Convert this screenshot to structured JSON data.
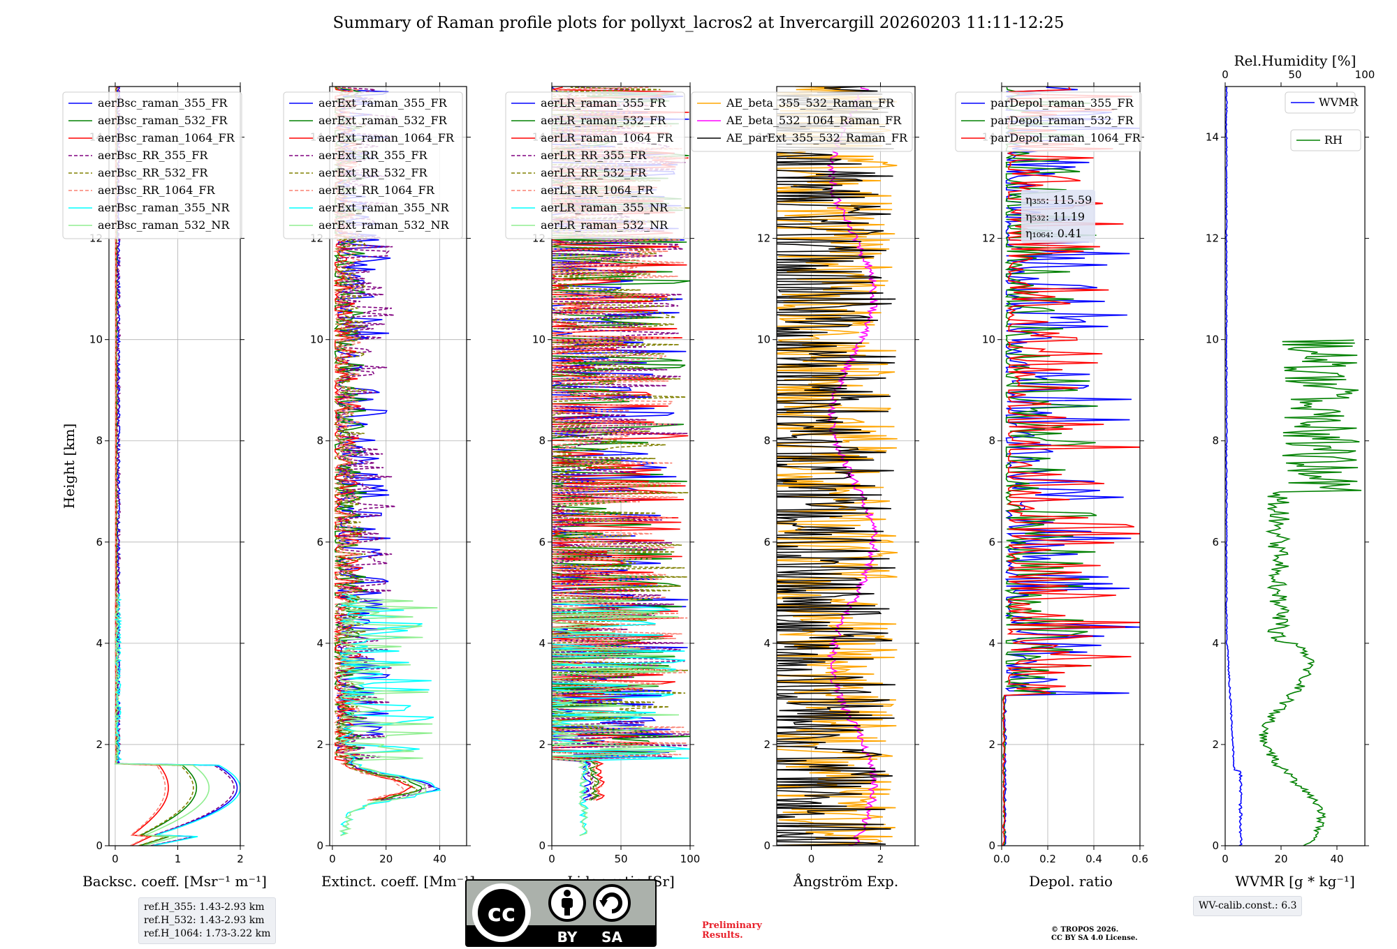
{
  "title": "Summary of Raman profile plots for pollyxt_lacros2 at Invercargill 20260203 11:11-12:25",
  "colors": {
    "blue": "#0000ff",
    "green": "#008000",
    "red": "#ff0000",
    "purple": "#800080",
    "olive": "#808000",
    "salmon": "#fa8072",
    "cyan": "#00ffff",
    "lightgreen": "#90ee90",
    "orange": "#ffa500",
    "magenta": "#ff00ff",
    "black": "#000000"
  },
  "chart_data": [
    {
      "type": "line",
      "id": "bsc",
      "xlabel": "Backsc. coeff. [Msr⁻¹ m⁻¹]",
      "ylabel": "Height [km]",
      "xlim": [
        -0.1,
        2.0
      ],
      "ylim": [
        0,
        15
      ],
      "xticks": [
        0,
        1,
        2
      ],
      "xtick_labels": [
        "0",
        "1",
        "2"
      ],
      "yticks": [
        0,
        2,
        4,
        6,
        8,
        10,
        12,
        14
      ],
      "ytick_labels": [
        "0",
        "2",
        "4",
        "6",
        "8",
        "10",
        "12",
        "14"
      ],
      "grid": true,
      "legend_position": "upper-left",
      "series": [
        {
          "name": "aerBsc_raman_355_FR",
          "color": "blue",
          "dash": "",
          "pattern": "pbl",
          "peak": 1.95,
          "free": 0.05,
          "noise": 0.05,
          "top": 15,
          "bottom": 0
        },
        {
          "name": "aerBsc_raman_532_FR",
          "color": "green",
          "dash": "",
          "pattern": "pbl",
          "peak": 1.3,
          "free": 0.02,
          "noise": 0.02,
          "top": 15,
          "bottom": 0
        },
        {
          "name": "aerBsc_raman_1064_FR",
          "color": "red",
          "dash": "",
          "pattern": "pbl",
          "peak": 0.85,
          "free": 0.01,
          "noise": 0.01,
          "top": 15,
          "bottom": 0
        },
        {
          "name": "aerBsc_RR_355_FR",
          "color": "purple",
          "dash": "5,3",
          "pattern": "pbl",
          "peak": 1.9,
          "free": 0.05,
          "noise": 0.06,
          "top": 15,
          "bottom": 0
        },
        {
          "name": "aerBsc_RR_532_FR",
          "color": "olive",
          "dash": "5,3",
          "pattern": "pbl",
          "peak": 1.25,
          "free": 0.02,
          "noise": 0.02,
          "top": 15,
          "bottom": 0
        },
        {
          "name": "aerBsc_RR_1064_FR",
          "color": "salmon",
          "dash": "5,3",
          "pattern": "pbl",
          "peak": 0.8,
          "free": 0.01,
          "noise": 0.01,
          "top": 15,
          "bottom": 0
        },
        {
          "name": "aerBsc_raman_355_NR",
          "color": "cyan",
          "dash": "",
          "pattern": "pbl",
          "peak": 2.0,
          "free": 0.05,
          "noise": 0.08,
          "top": 5,
          "bottom": 0
        },
        {
          "name": "aerBsc_raman_532_NR",
          "color": "lightgreen",
          "dash": "",
          "pattern": "pbl",
          "peak": 1.5,
          "free": 0.03,
          "noise": 0.06,
          "top": 5,
          "bottom": 0
        }
      ]
    },
    {
      "type": "line",
      "id": "ext",
      "xlabel": "Extinct. coeff. [Mm⁻¹]",
      "ylabel": "",
      "xlim": [
        -1,
        50
      ],
      "ylim": [
        0,
        15
      ],
      "xticks": [
        0,
        20,
        40
      ],
      "xtick_labels": [
        "0",
        "20",
        "40"
      ],
      "yticks": [
        0,
        2,
        4,
        6,
        8,
        10,
        12,
        14
      ],
      "ytick_labels": [
        "0",
        "2",
        "4",
        "6",
        "8",
        "10",
        "12",
        "14"
      ],
      "grid": true,
      "legend_position": "upper-left",
      "series": [
        {
          "name": "aerExt_raman_355_FR",
          "color": "blue",
          "dash": "",
          "pattern": "noisy",
          "peak": 36,
          "free": 2,
          "noise": 20,
          "top": 15,
          "bottom": 0.9
        },
        {
          "name": "aerExt_raman_532_FR",
          "color": "green",
          "dash": "",
          "pattern": "noisy",
          "peak": 31,
          "free": 1,
          "noise": 12,
          "top": 15,
          "bottom": 0.9
        },
        {
          "name": "aerExt_raman_1064_FR",
          "color": "red",
          "dash": "",
          "pattern": "noisy",
          "peak": 27,
          "free": 1,
          "noise": 10,
          "top": 15,
          "bottom": 0.9
        },
        {
          "name": "aerExt_RR_355_FR",
          "color": "purple",
          "dash": "5,3",
          "pattern": "noisy",
          "peak": 34,
          "free": 2,
          "noise": 22,
          "top": 15,
          "bottom": 0.9
        },
        {
          "name": "aerExt_RR_532_FR",
          "color": "olive",
          "dash": "5,3",
          "pattern": "noisy",
          "peak": 29,
          "free": 1,
          "noise": 12,
          "top": 15,
          "bottom": 0.9
        },
        {
          "name": "aerExt_RR_1064_FR",
          "color": "salmon",
          "dash": "5,3",
          "pattern": "noisy",
          "peak": 25,
          "free": 1,
          "noise": 10,
          "top": 15,
          "bottom": 0.9
        },
        {
          "name": "aerExt_raman_355_NR",
          "color": "cyan",
          "dash": "",
          "pattern": "noisy",
          "peak": 38,
          "free": 3,
          "noise": 35,
          "top": 5,
          "bottom": 0.2
        },
        {
          "name": "aerExt_raman_532_NR",
          "color": "lightgreen",
          "dash": "",
          "pattern": "noisy",
          "peak": 34,
          "free": 3,
          "noise": 40,
          "top": 5,
          "bottom": 0.2
        }
      ]
    },
    {
      "type": "line",
      "id": "lr",
      "xlabel": "Lidar ratio [Sr]",
      "ylabel": "",
      "xlim": [
        0,
        100
      ],
      "ylim": [
        0,
        15
      ],
      "xticks": [
        0,
        50,
        100
      ],
      "xtick_labels": [
        "0",
        "50",
        "100"
      ],
      "yticks": [
        0,
        2,
        4,
        6,
        8,
        10,
        12,
        14
      ],
      "ytick_labels": [
        "0",
        "2",
        "4",
        "6",
        "8",
        "10",
        "12",
        "14"
      ],
      "grid": true,
      "legend_position": "upper-left",
      "series": [
        {
          "name": "aerLR_raman_355_FR",
          "color": "blue",
          "dash": "",
          "pattern": "lr",
          "peak": 22,
          "free": 50,
          "noise": 50,
          "top": 15,
          "bottom": 0.9
        },
        {
          "name": "aerLR_raman_532_FR",
          "color": "green",
          "dash": "",
          "pattern": "lr",
          "peak": 28,
          "free": 50,
          "noise": 50,
          "top": 15,
          "bottom": 0.9
        },
        {
          "name": "aerLR_raman_1064_FR",
          "color": "red",
          "dash": "",
          "pattern": "lr",
          "peak": 32,
          "free": 50,
          "noise": 50,
          "top": 15,
          "bottom": 0.9
        },
        {
          "name": "aerLR_RR_355_FR",
          "color": "purple",
          "dash": "5,3",
          "pattern": "lr",
          "peak": 24,
          "free": 50,
          "noise": 50,
          "top": 15,
          "bottom": 0.9
        },
        {
          "name": "aerLR_RR_532_FR",
          "color": "olive",
          "dash": "5,3",
          "pattern": "lr",
          "peak": 27,
          "free": 50,
          "noise": 50,
          "top": 15,
          "bottom": 0.9
        },
        {
          "name": "aerLR_RR_1064_FR",
          "color": "salmon",
          "dash": "5,3",
          "pattern": "lr",
          "peak": 30,
          "free": 50,
          "noise": 50,
          "top": 15,
          "bottom": 0.9
        },
        {
          "name": "aerLR_raman_355_NR",
          "color": "cyan",
          "dash": "",
          "pattern": "lr",
          "peak": 20,
          "free": 50,
          "noise": 50,
          "top": 5,
          "bottom": 0.2
        },
        {
          "name": "aerLR_raman_532_NR",
          "color": "lightgreen",
          "dash": "",
          "pattern": "lr",
          "peak": 20,
          "free": 50,
          "noise": 50,
          "top": 5,
          "bottom": 0.2
        }
      ]
    },
    {
      "type": "line",
      "id": "ae",
      "xlabel": "Ångström Exp.",
      "ylabel": "",
      "xlim": [
        -1,
        3
      ],
      "ylim": [
        0,
        15
      ],
      "xticks": [
        0,
        2
      ],
      "xtick_labels": [
        "0",
        "2"
      ],
      "yticks": [
        0,
        2,
        4,
        6,
        8,
        10,
        12,
        14
      ],
      "ytick_labels": [
        "0",
        "2",
        "4",
        "6",
        "8",
        "10",
        "12",
        "14"
      ],
      "grid": true,
      "legend_position": "upper-center",
      "series": [
        {
          "name": "AE_beta_355_532_Raman_FR",
          "color": "orange",
          "dash": "",
          "pattern": "ae",
          "peak": 1.0,
          "free": 0.5,
          "noise": 4,
          "top": 15,
          "bottom": 0
        },
        {
          "name": "AE_beta_532_1064_Raman_FR",
          "color": "magenta",
          "dash": "",
          "pattern": "ae",
          "peak": 1.5,
          "free": 1.2,
          "noise": 1.2,
          "top": 15,
          "bottom": 0
        },
        {
          "name": "AE_parExt_355_532_Raman_FR",
          "color": "black",
          "dash": "",
          "pattern": "ae",
          "peak": 0.5,
          "free": 0.0,
          "noise": 5,
          "top": 15,
          "bottom": 0
        }
      ]
    },
    {
      "type": "line",
      "id": "dep",
      "xlabel": "Depol. ratio",
      "ylabel": "",
      "xlim": [
        0,
        0.6
      ],
      "ylim": [
        0,
        15
      ],
      "xticks": [
        0,
        0.2,
        0.4,
        0.6
      ],
      "xtick_labels": [
        "0.0",
        "0.2",
        "0.4",
        "0.6"
      ],
      "yticks": [
        0,
        2,
        4,
        6,
        8,
        10,
        12,
        14
      ],
      "ytick_labels": [
        "0",
        "2",
        "4",
        "6",
        "8",
        "10",
        "12",
        "14"
      ],
      "grid": true,
      "legend_position": "upper-left",
      "annotation": [
        "η₃₅₅: 115.59",
        "η₅₃₂: 11.19",
        "η₁₀₆₄: 0.41"
      ],
      "series": [
        {
          "name": "parDepol_raman_355_FR",
          "color": "blue",
          "dash": "",
          "pattern": "dep",
          "peak": 0.01,
          "free": 0.02,
          "noise": 0.6,
          "top": 15,
          "bottom": 0
        },
        {
          "name": "parDepol_raman_532_FR",
          "color": "green",
          "dash": "",
          "pattern": "dep",
          "peak": 0.005,
          "free": 0.02,
          "noise": 0.4,
          "top": 15,
          "bottom": 0
        },
        {
          "name": "parDepol_raman_1064_FR",
          "color": "red",
          "dash": "",
          "pattern": "dep",
          "peak": 0.005,
          "free": 0.03,
          "noise": 0.6,
          "top": 15,
          "bottom": 0
        }
      ]
    },
    {
      "type": "line",
      "id": "wv",
      "xlabel": "WVMR [g * kg⁻¹]",
      "ylabel": "",
      "top_xlabel": "Rel.Humidity [%]",
      "xlim": [
        0,
        50
      ],
      "ylim": [
        0,
        15
      ],
      "top_xlim": [
        0,
        100
      ],
      "xticks": [
        0,
        20,
        40
      ],
      "xtick_labels": [
        "0",
        "20",
        "40"
      ],
      "top_xticks": [
        0,
        50,
        100
      ],
      "top_xtick_labels": [
        "0",
        "50",
        "100"
      ],
      "yticks": [
        0,
        2,
        4,
        6,
        8,
        10,
        12,
        14
      ],
      "ytick_labels": [
        "0",
        "2",
        "4",
        "6",
        "8",
        "10",
        "12",
        "14"
      ],
      "grid": false,
      "series": [
        {
          "name": "WVMR",
          "color": "blue",
          "dash": "",
          "pattern": "wv",
          "peak": 6,
          "free": 0.5,
          "noise": 1,
          "top": 15,
          "bottom": 0
        },
        {
          "name": "RH",
          "color": "green",
          "dash": "",
          "pattern": "rh",
          "peak": 30,
          "free": 20,
          "noise": 10,
          "top": 10,
          "bottom": 0
        }
      ]
    }
  ],
  "footer": {
    "ref_heights": [
      "ref.H_355: 1.43-2.93 km",
      "ref.H_532: 1.43-2.93 km",
      "ref.H_1064: 1.73-3.22 km"
    ],
    "preliminary": [
      "Preliminary",
      "Results."
    ],
    "copyright": [
      "© TROPOS 2026.",
      "CC BY SA 4.0 License."
    ],
    "wv_calib": "WV-calib.const.: 6.3",
    "license_badge": {
      "cc": "cc",
      "by": "BY",
      "sa": "SA"
    }
  }
}
